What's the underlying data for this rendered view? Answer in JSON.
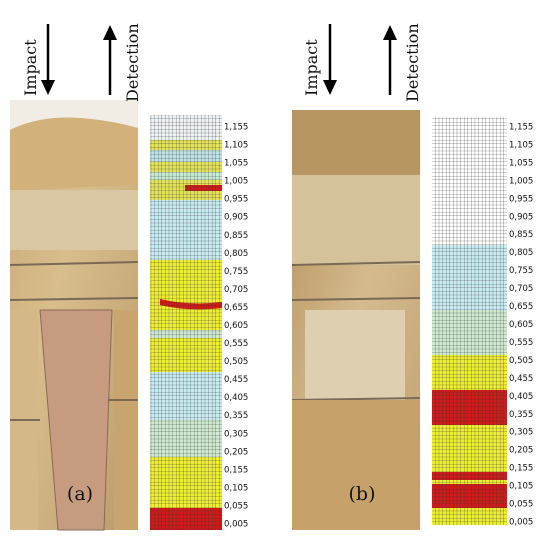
{
  "panel_a": {
    "impact_label": "Impact",
    "detection_label": "Detection",
    "caption": "(a)",
    "scale_labels": [
      "1,155",
      "1,105",
      "1,055",
      "1,005",
      "0,955",
      "0,905",
      "0,855",
      "0,805",
      "0,755",
      "0,705",
      "0,655",
      "0,605",
      "0,555",
      "0,505",
      "0,455",
      "0,405",
      "0,355",
      "0,305",
      "0,205",
      "0,155",
      "0,105",
      "0,055",
      "0,005"
    ]
  },
  "panel_b": {
    "impact_label": "Impact",
    "detection_label": "Detection",
    "caption": "(b)",
    "scale_labels": [
      "1,155",
      "1,105",
      "1,055",
      "1,005",
      "0,955",
      "0,905",
      "0,855",
      "0,805",
      "0,755",
      "0,705",
      "0,655",
      "0,605",
      "0,555",
      "0,505",
      "0,455",
      "0,405",
      "0,355",
      "0,305",
      "0,205",
      "0,155",
      "0,105",
      "0,055",
      "0,005"
    ]
  }
}
